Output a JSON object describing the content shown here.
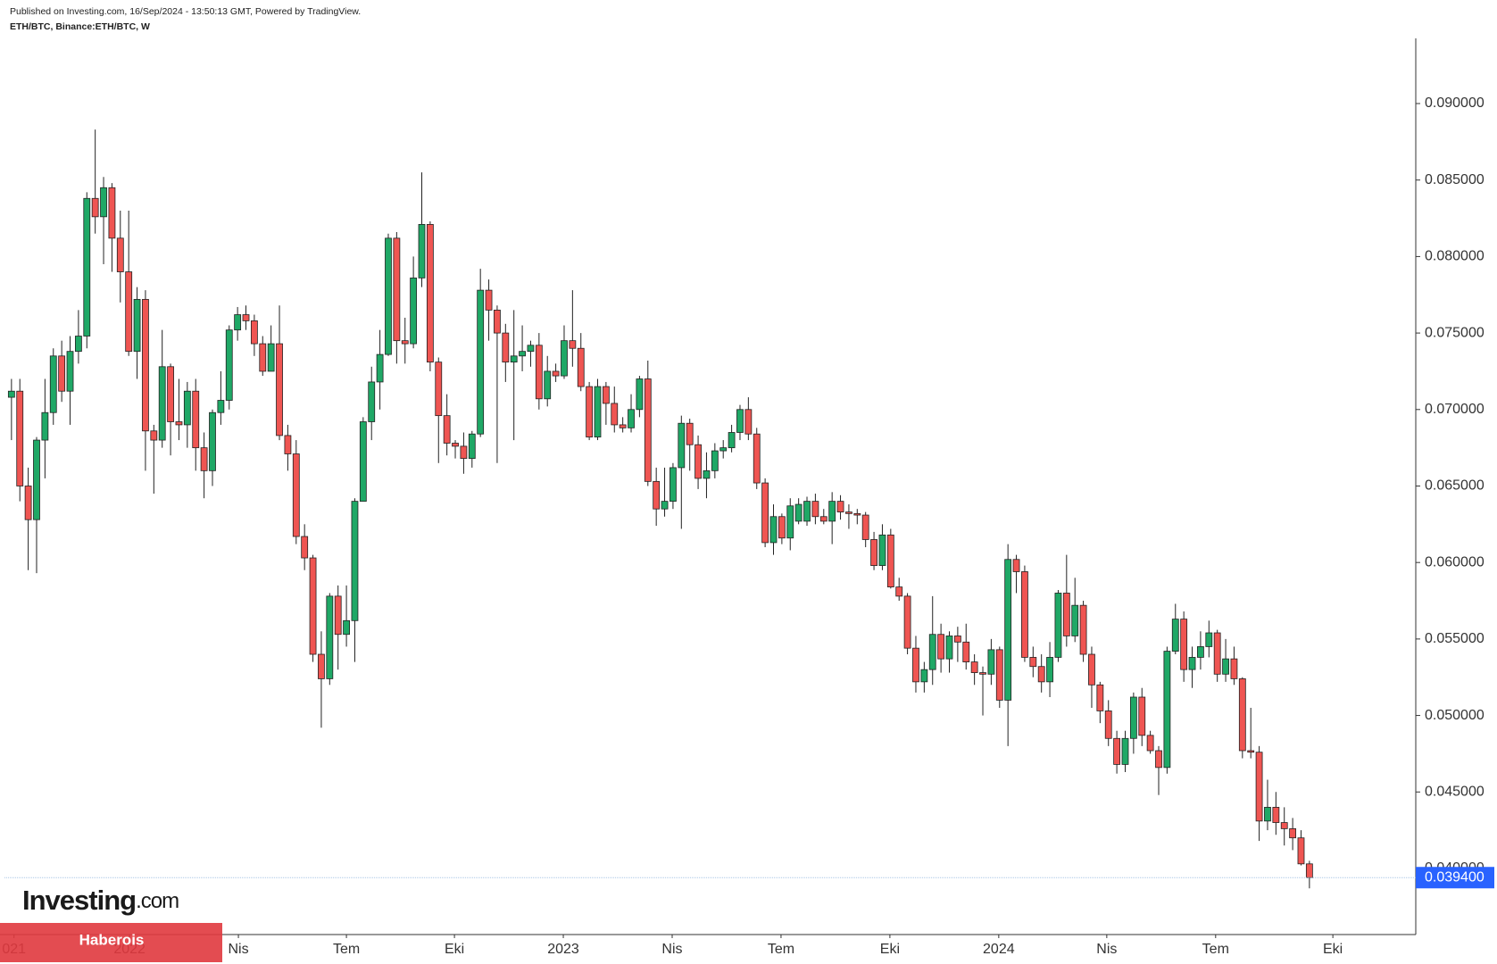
{
  "header": {
    "published": "Published on Investing.com, 16/Sep/2024 - 13:50:13 GMT, Powered by TradingView.",
    "symbol": "ETH/BTC, Binance:ETH/BTC, W"
  },
  "logo": {
    "name": "Investing",
    "suffix": ".com"
  },
  "banner": "Haberois",
  "chart_data": {
    "type": "candlestick",
    "up_color": "#1fa866",
    "down_color": "#ef5552",
    "line_color": "#a9c6e6",
    "last_label_color": "#2962ff",
    "open": [
      0.0708,
      0.0712,
      0.065,
      0.0628,
      0.068,
      0.0698,
      0.0735,
      0.0712,
      0.0738,
      0.0748,
      0.0838,
      0.0826,
      0.0845,
      0.0812,
      0.079,
      0.0738,
      0.0772,
      0.0686,
      0.068,
      0.0728,
      0.0692,
      0.069,
      0.0712,
      0.0675,
      0.066,
      0.0698,
      0.0706,
      0.0752,
      0.0762,
      0.0758,
      0.0743,
      0.0725,
      0.0743,
      0.0683,
      0.0671,
      0.0617,
      0.0603,
      0.054,
      0.0524,
      0.0578,
      0.0553,
      0.0562,
      0.064,
      0.0692,
      0.0718,
      0.0736,
      0.0812,
      0.0745,
      0.0743,
      0.0786,
      0.0821,
      0.0731,
      0.0696,
      0.0678,
      0.0676,
      0.0668,
      0.0684,
      0.0778,
      0.0765,
      0.075,
      0.0731,
      0.0735,
      0.0738,
      0.0742,
      0.0707,
      0.0725,
      0.0722,
      0.0745,
      0.074,
      0.0715,
      0.0682,
      0.0715,
      0.0704,
      0.069,
      0.0688,
      0.07,
      0.072,
      0.0653,
      0.0635,
      0.064,
      0.0662,
      0.0691,
      0.0677,
      0.0655,
      0.066,
      0.0673,
      0.0675,
      0.0685,
      0.07,
      0.0684,
      0.0652,
      0.0613,
      0.063,
      0.0616,
      0.0627,
      0.0627,
      0.064,
      0.063,
      0.0627,
      0.064,
      0.0633,
      0.0632,
      0.0631,
      0.0615,
      0.0598,
      0.0618,
      0.0584,
      0.0578,
      0.0544,
      0.0522,
      0.053,
      0.0553,
      0.0537,
      0.0552,
      0.0548,
      0.0535,
      0.0528,
      0.0527,
      0.0543,
      0.051,
      0.0602,
      0.0594,
      0.0538,
      0.0532,
      0.0522,
      0.0538,
      0.058,
      0.0552,
      0.0572,
      0.054,
      0.052,
      0.0503,
      0.0485,
      0.0468,
      0.0485,
      0.0512,
      0.0487,
      0.0477,
      0.0466,
      0.0542,
      0.0563,
      0.053,
      0.0538,
      0.0545,
      0.0554,
      0.0527,
      0.0537,
      0.0524,
      0.0477,
      0.0476,
      0.0431,
      0.044,
      0.043,
      0.0426,
      0.042,
      0.0403
    ],
    "high": [
      0.072,
      0.072,
      0.0662,
      0.0682,
      0.072,
      0.074,
      0.0745,
      0.0748,
      0.0765,
      0.0842,
      0.0883,
      0.0852,
      0.0848,
      0.083,
      0.083,
      0.078,
      0.0778,
      0.069,
      0.0752,
      0.073,
      0.072,
      0.0718,
      0.072,
      0.0685,
      0.07,
      0.0725,
      0.0755,
      0.0767,
      0.0768,
      0.0762,
      0.0748,
      0.0755,
      0.0768,
      0.069,
      0.068,
      0.0625,
      0.0605,
      0.0555,
      0.058,
      0.0585,
      0.0585,
      0.0642,
      0.0695,
      0.0728,
      0.0752,
      0.0815,
      0.0816,
      0.076,
      0.08,
      0.0855,
      0.0823,
      0.0734,
      0.071,
      0.068,
      0.0685,
      0.0686,
      0.0792,
      0.0785,
      0.0768,
      0.0756,
      0.0765,
      0.0755,
      0.0745,
      0.075,
      0.0735,
      0.073,
      0.0755,
      0.0778,
      0.075,
      0.0718,
      0.072,
      0.0718,
      0.0715,
      0.0695,
      0.071,
      0.0722,
      0.0732,
      0.0662,
      0.0662,
      0.0665,
      0.0696,
      0.0694,
      0.0683,
      0.0672,
      0.0678,
      0.068,
      0.069,
      0.0703,
      0.0708,
      0.0688,
      0.0655,
      0.0638,
      0.0632,
      0.0642,
      0.0642,
      0.0643,
      0.0645,
      0.0635,
      0.0646,
      0.0644,
      0.0638,
      0.0635,
      0.0633,
      0.062,
      0.0625,
      0.0622,
      0.059,
      0.058,
      0.0552,
      0.0535,
      0.0578,
      0.056,
      0.0555,
      0.0558,
      0.056,
      0.054,
      0.0532,
      0.055,
      0.0545,
      0.0612,
      0.0605,
      0.0598,
      0.0545,
      0.054,
      0.0548,
      0.0582,
      0.0605,
      0.059,
      0.0575,
      0.0545,
      0.0522,
      0.051,
      0.049,
      0.049,
      0.0515,
      0.0518,
      0.049,
      0.048,
      0.0545,
      0.0573,
      0.0568,
      0.0545,
      0.0555,
      0.0562,
      0.0556,
      0.055,
      0.0545,
      0.0525,
      0.0505,
      0.048,
      0.0458,
      0.045,
      0.044,
      0.0433,
      0.0425,
      0.0405
    ],
    "low": [
      0.068,
      0.064,
      0.0595,
      0.0593,
      0.0655,
      0.069,
      0.0705,
      0.069,
      0.073,
      0.074,
      0.0815,
      0.0795,
      0.079,
      0.077,
      0.0735,
      0.072,
      0.066,
      0.0645,
      0.0675,
      0.067,
      0.068,
      0.0675,
      0.066,
      0.0642,
      0.065,
      0.069,
      0.07,
      0.0745,
      0.0752,
      0.0735,
      0.0722,
      0.0725,
      0.068,
      0.066,
      0.0612,
      0.0595,
      0.0535,
      0.0492,
      0.052,
      0.053,
      0.0545,
      0.0535,
      0.064,
      0.068,
      0.07,
      0.0735,
      0.073,
      0.073,
      0.074,
      0.078,
      0.0725,
      0.0665,
      0.067,
      0.0668,
      0.0658,
      0.0662,
      0.0682,
      0.0745,
      0.0665,
      0.0718,
      0.068,
      0.0725,
      0.0728,
      0.07,
      0.0702,
      0.0718,
      0.072,
      0.0728,
      0.0712,
      0.068,
      0.068,
      0.069,
      0.0685,
      0.0685,
      0.0685,
      0.0695,
      0.065,
      0.0624,
      0.063,
      0.0635,
      0.0622,
      0.066,
      0.0648,
      0.0642,
      0.0655,
      0.0668,
      0.0672,
      0.068,
      0.068,
      0.0648,
      0.061,
      0.0605,
      0.0612,
      0.0608,
      0.0625,
      0.0624,
      0.0625,
      0.0625,
      0.0612,
      0.0628,
      0.0622,
      0.0625,
      0.061,
      0.0595,
      0.0595,
      0.0583,
      0.0575,
      0.054,
      0.0515,
      0.0515,
      0.052,
      0.0528,
      0.0528,
      0.0535,
      0.053,
      0.052,
      0.05,
      0.052,
      0.0505,
      0.048,
      0.058,
      0.0535,
      0.0525,
      0.0515,
      0.0512,
      0.0535,
      0.0545,
      0.0548,
      0.0535,
      0.0505,
      0.0495,
      0.048,
      0.0462,
      0.0463,
      0.0475,
      0.048,
      0.0475,
      0.0448,
      0.0462,
      0.054,
      0.0522,
      0.0518,
      0.053,
      0.0538,
      0.0522,
      0.0522,
      0.052,
      0.0472,
      0.0472,
      0.0418,
      0.0425,
      0.0422,
      0.0415,
      0.0412,
      0.0402,
      0.0387
    ],
    "close": [
      0.0712,
      0.065,
      0.0628,
      0.068,
      0.0698,
      0.0735,
      0.0712,
      0.0738,
      0.0748,
      0.0838,
      0.0826,
      0.0845,
      0.0812,
      0.079,
      0.0738,
      0.0772,
      0.0686,
      0.068,
      0.0728,
      0.0692,
      0.069,
      0.0712,
      0.0675,
      0.066,
      0.0698,
      0.0706,
      0.0752,
      0.0762,
      0.0758,
      0.0743,
      0.0725,
      0.0743,
      0.0683,
      0.0671,
      0.0617,
      0.0603,
      0.054,
      0.0524,
      0.0578,
      0.0553,
      0.0562,
      0.064,
      0.0692,
      0.0718,
      0.0736,
      0.0812,
      0.0745,
      0.0743,
      0.0786,
      0.0821,
      0.0731,
      0.0696,
      0.0678,
      0.0676,
      0.0668,
      0.0684,
      0.0778,
      0.0765,
      0.075,
      0.0731,
      0.0735,
      0.0738,
      0.0742,
      0.0707,
      0.0725,
      0.0722,
      0.0745,
      0.074,
      0.0715,
      0.0682,
      0.0715,
      0.0704,
      0.069,
      0.0688,
      0.07,
      0.072,
      0.0653,
      0.0635,
      0.064,
      0.0662,
      0.0691,
      0.0677,
      0.0655,
      0.066,
      0.0673,
      0.0675,
      0.0685,
      0.07,
      0.0684,
      0.0652,
      0.0613,
      0.063,
      0.0616,
      0.0637,
      0.0638,
      0.064,
      0.063,
      0.0627,
      0.064,
      0.0633,
      0.0632,
      0.0631,
      0.0615,
      0.0598,
      0.0618,
      0.0584,
      0.0578,
      0.0544,
      0.0522,
      0.053,
      0.0553,
      0.0537,
      0.0552,
      0.0548,
      0.0535,
      0.0528,
      0.0527,
      0.0543,
      0.051,
      0.0602,
      0.0594,
      0.0538,
      0.0532,
      0.0522,
      0.0538,
      0.058,
      0.0552,
      0.0572,
      0.054,
      0.052,
      0.0503,
      0.0485,
      0.0468,
      0.0485,
      0.0512,
      0.0487,
      0.0477,
      0.0466,
      0.0542,
      0.0563,
      0.053,
      0.0538,
      0.0545,
      0.0554,
      0.0527,
      0.0537,
      0.0524,
      0.0477,
      0.0476,
      0.0431,
      0.044,
      0.043,
      0.0426,
      0.042,
      0.0403,
      0.0394
    ],
    "xlim": [
      -1.37,
      167.7
    ],
    "xticks": [
      {
        "value": 0.3,
        "label": "021"
      },
      {
        "value": 14.1,
        "label": "2022"
      },
      {
        "value": 27.1,
        "label": "Nis"
      },
      {
        "value": 40,
        "label": "Tem"
      },
      {
        "value": 52.9,
        "label": "Eki"
      },
      {
        "value": 65.9,
        "label": "2023"
      },
      {
        "value": 78.9,
        "label": "Nis"
      },
      {
        "value": 91.9,
        "label": "Tem"
      },
      {
        "value": 104.9,
        "label": "Eki"
      },
      {
        "value": 117.9,
        "label": "2024"
      },
      {
        "value": 130.8,
        "label": "Nis"
      },
      {
        "value": 143.8,
        "label": "Tem"
      },
      {
        "value": 157.8,
        "label": "Eki"
      }
    ],
    "ylim": [
      0.03568,
      0.09426
    ],
    "yticks": [
      {
        "value": 0.04,
        "label": "0.040000"
      },
      {
        "value": 0.045,
        "label": "0.045000"
      },
      {
        "value": 0.05,
        "label": "0.050000"
      },
      {
        "value": 0.055,
        "label": "0.055000"
      },
      {
        "value": 0.06,
        "label": "0.060000"
      },
      {
        "value": 0.065,
        "label": "0.065000"
      },
      {
        "value": 0.07,
        "label": "0.070000"
      },
      {
        "value": 0.075,
        "label": "0.075000"
      },
      {
        "value": 0.08,
        "label": "0.080000"
      },
      {
        "value": 0.085,
        "label": "0.085000"
      },
      {
        "value": 0.09,
        "label": "0.090000"
      }
    ],
    "last_price": {
      "value": 0.0394,
      "label": "0.039400"
    }
  }
}
